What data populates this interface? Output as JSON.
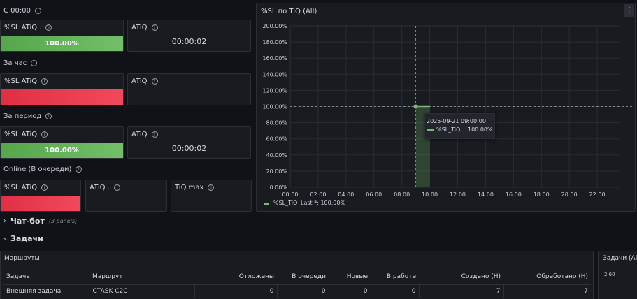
{
  "sections": {
    "since_midnight": "С 00:00",
    "per_hour": "За час",
    "per_period": "За период",
    "online": "Online (В очереди)"
  },
  "stats": {
    "sl_since": {
      "title": "%SL ATiQ .",
      "value": "100.00%"
    },
    "atiq_since": {
      "title": "ATiQ",
      "value": "00:00:02"
    },
    "sl_hour": {
      "title": "%SL ATiQ",
      "value": ""
    },
    "atiq_hour": {
      "title": "ATiQ",
      "value": ""
    },
    "sl_period": {
      "title": "%SL ATiQ",
      "value": "100.00%"
    },
    "atiq_period": {
      "title": "ATiQ",
      "value": "00:00:02"
    },
    "sl_online": {
      "title": "%SL ATiQ",
      "value": ""
    },
    "atiq_online": {
      "title": "ATiQ .",
      "value": ""
    },
    "tiq_max": {
      "title": "TiQ max",
      "value": ""
    }
  },
  "graph": {
    "title": "%SL по TiQ (All)",
    "menu": "⋮",
    "tooltip": {
      "time": "2025-09-21 09:00:00",
      "series": "%SL_TiQ",
      "value": "100.00%"
    },
    "legend": {
      "name": "%SL_TiQ",
      "summary": "Last *: 100.00%"
    },
    "color": "#73bf69"
  },
  "chart_data": {
    "type": "line",
    "title": "%SL по TiQ (All)",
    "x_ticks": [
      "00:00",
      "02:00",
      "04:00",
      "06:00",
      "08:00",
      "10:00",
      "12:00",
      "14:00",
      "16:00",
      "18:00",
      "20:00",
      "22:00"
    ],
    "y_ticks": [
      "0.00%",
      "20.00%",
      "40.00%",
      "60.00%",
      "80.00%",
      "100.00%",
      "120.00%",
      "140.00%",
      "160.00%",
      "180.00%",
      "200.00%"
    ],
    "ylim": [
      0,
      200
    ],
    "xlim_hours": [
      0,
      23.6
    ],
    "series": [
      {
        "name": "%SL_TiQ",
        "x": [
          "09:00"
        ],
        "values": [
          100
        ]
      }
    ]
  },
  "rows": {
    "chatbot": {
      "arrow": "›",
      "title": "Чат-бот",
      "sub": "(3 panels)"
    },
    "tasks": {
      "arrow": "›",
      "title": "Задачи"
    }
  },
  "routes": {
    "title": "Маршруты",
    "columns": [
      "Задача",
      "Маршрут",
      "Отложены",
      "В очереди",
      "Новые",
      "В работе",
      "Создано (Н)",
      "Обработано (Н)"
    ],
    "rows": [
      [
        "Внешняя задача",
        "CTASK C2C",
        "0",
        "0",
        "0",
        "0",
        "7",
        "7"
      ]
    ]
  },
  "tasks_panel": {
    "title": "Задачи (All)",
    "ytick": "2.60"
  }
}
